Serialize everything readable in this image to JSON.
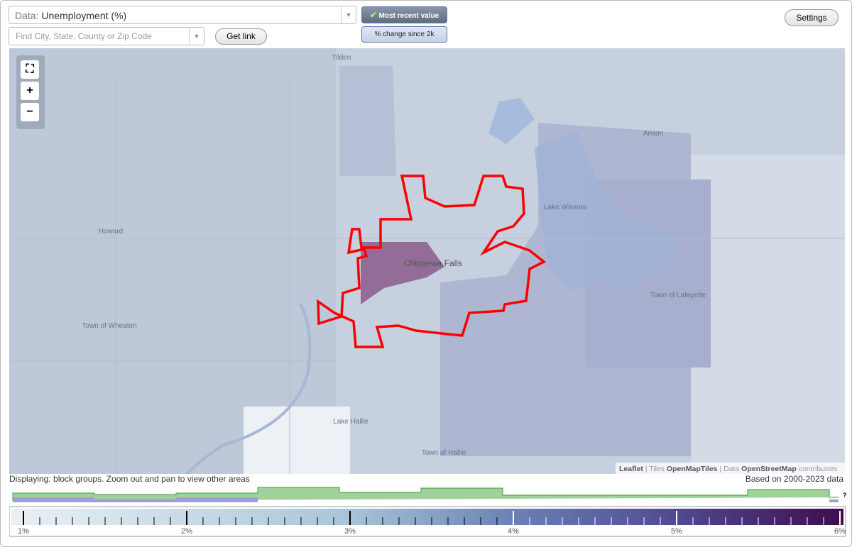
{
  "controls": {
    "data_prefix": "Data:",
    "data_value": "Unemployment (%)",
    "search_placeholder": "Find City, State, County or Zip Code",
    "get_link": "Get link",
    "most_recent": "Most recent value",
    "pct_change": "% change since 2k",
    "settings": "Settings"
  },
  "map": {
    "labels": [
      "Tilden",
      "Anson",
      "Howard",
      "Lake Wissota",
      "Chippewa Falls",
      "Town of Lafayette",
      "Town of Wheaton",
      "Lake Hallie",
      "Town of Hallie"
    ],
    "attribution": {
      "leaflet": "Leaflet",
      "tiles": "| Tiles",
      "tiles_src": "OpenMapTiles",
      "data": "| Data",
      "data_src": "OpenStreetMap",
      "contributors": "contributors"
    }
  },
  "footer": {
    "displaying": "Displaying: block groups. Zoom out and pan to view other areas",
    "based_on": "Based on 2000-2023 data",
    "help": "?"
  },
  "legend": {
    "labels": [
      "1%",
      "2%",
      "3%",
      "4%",
      "5%",
      "6%"
    ]
  }
}
